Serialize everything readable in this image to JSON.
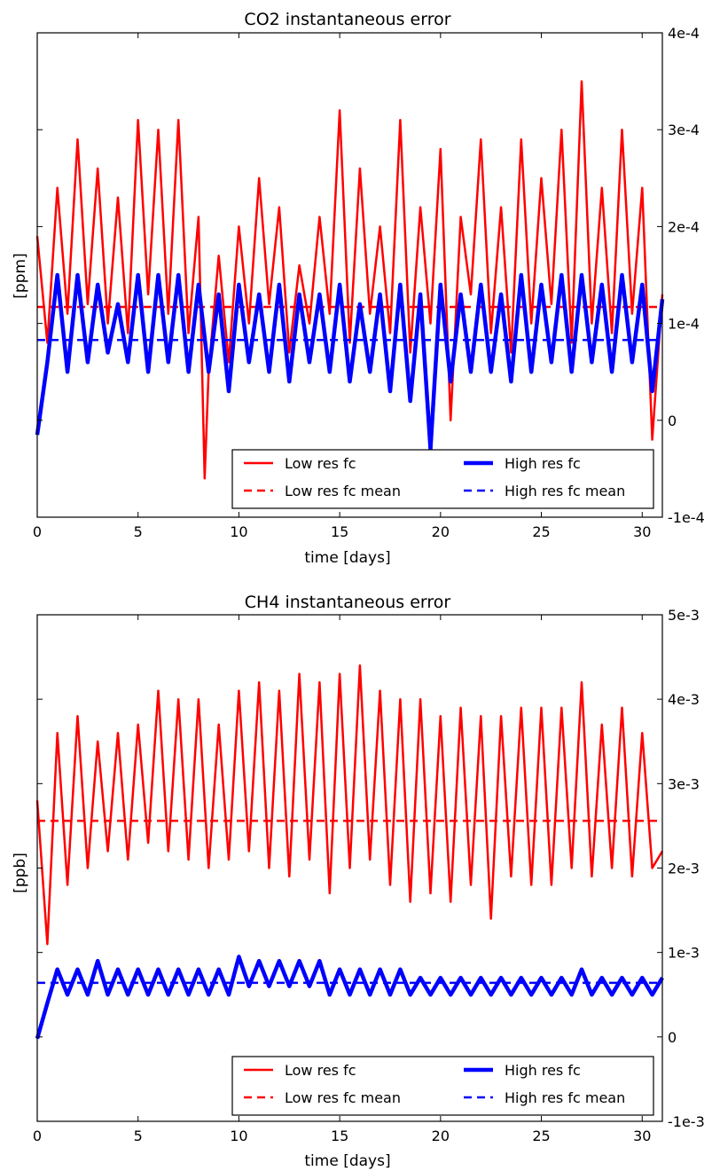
{
  "colors": {
    "low_res": "#ff0000",
    "high_res": "#0000ff",
    "background": "#ffffff",
    "axes": "#000000"
  },
  "chart_data": [
    {
      "type": "line",
      "title": "CO2 instantaneous error",
      "xlabel": "time [days]",
      "ylabel": "[ppm]",
      "xlim": [
        0,
        31
      ],
      "ylim": [
        -0.0001,
        0.0004
      ],
      "xticks": [
        "0",
        "5",
        "10",
        "15",
        "20",
        "25",
        "30"
      ],
      "xtick_values": [
        0,
        5,
        10,
        15,
        20,
        25,
        30
      ],
      "yticks": [
        "-1e-4",
        "0",
        "1e-4",
        "2e-4",
        "3e-4",
        "4e-4"
      ],
      "ytick_values": [
        -0.0001,
        0,
        0.0001,
        0.0002,
        0.0003,
        0.0004
      ],
      "y_axis_side": "right",
      "grid": false,
      "legend_placement": "lower-right",
      "series": [
        {
          "name": "Low res fc",
          "style": "solid",
          "x": [
            0,
            0.5,
            1,
            1.5,
            2,
            2.5,
            3,
            3.5,
            4,
            4.5,
            5,
            5.5,
            6,
            6.5,
            7,
            7.5,
            8,
            8.3,
            8.5,
            9,
            9.5,
            10,
            10.5,
            11,
            11.5,
            12,
            12.5,
            13,
            13.5,
            14,
            14.5,
            15,
            15.5,
            16,
            16.5,
            17,
            17.5,
            18,
            18.5,
            19,
            19.5,
            20,
            20.5,
            21,
            21.5,
            22,
            22.5,
            23,
            23.5,
            24,
            24.5,
            25,
            25.5,
            26,
            26.5,
            27,
            27.5,
            28,
            28.5,
            29,
            29.5,
            30,
            30.5,
            31
          ],
          "values": [
            0.00019,
            8e-05,
            0.00024,
            0.00011,
            0.00029,
            0.00012,
            0.00026,
            0.0001,
            0.00023,
            9e-05,
            0.00031,
            0.00013,
            0.0003,
            0.00011,
            0.00031,
            9e-05,
            0.00021,
            -6e-05,
            5e-05,
            0.00017,
            6e-05,
            0.0002,
            0.0001,
            0.00025,
            0.00012,
            0.00022,
            7e-05,
            0.00016,
            0.0001,
            0.00021,
            0.00011,
            0.00032,
            8e-05,
            0.00026,
            0.00011,
            0.0002,
            9e-05,
            0.00031,
            7e-05,
            0.00022,
            0.0001,
            0.00028,
            0.0,
            0.00021,
            0.00013,
            0.00029,
            9e-05,
            0.00022,
            7e-05,
            0.00029,
            0.0001,
            0.00025,
            0.00012,
            0.0003,
            8e-05,
            0.00035,
            0.0001,
            0.00024,
            9e-05,
            0.0003,
            0.00011,
            0.00024,
            -2e-05,
            0.00013
          ]
        },
        {
          "name": "Low res fc  mean",
          "style": "dashed",
          "x": [
            0,
            31
          ],
          "values": [
            0.000117,
            0.000117
          ]
        },
        {
          "name": "High res fc",
          "style": "solid-thick",
          "x": [
            0,
            0.5,
            1,
            1.5,
            2,
            2.5,
            3,
            3.5,
            4,
            4.5,
            5,
            5.5,
            6,
            6.5,
            7,
            7.5,
            8,
            8.5,
            9,
            9.5,
            10,
            10.5,
            11,
            11.5,
            12,
            12.5,
            13,
            13.5,
            14,
            14.5,
            15,
            15.5,
            16,
            16.5,
            17,
            17.5,
            18,
            18.5,
            19,
            19.5,
            20,
            20.5,
            21,
            21.5,
            22,
            22.5,
            23,
            23.5,
            24,
            24.5,
            25,
            25.5,
            26,
            26.5,
            27,
            27.5,
            28,
            28.5,
            29,
            29.5,
            30,
            30.5,
            31
          ],
          "values": [
            -1.5e-05,
            6e-05,
            0.00015,
            5e-05,
            0.00015,
            6e-05,
            0.00014,
            7e-05,
            0.00012,
            6e-05,
            0.00015,
            5e-05,
            0.00015,
            6e-05,
            0.00015,
            5e-05,
            0.00014,
            5e-05,
            0.00013,
            3e-05,
            0.00014,
            6e-05,
            0.00013,
            5e-05,
            0.00014,
            4e-05,
            0.00013,
            6e-05,
            0.00013,
            5e-05,
            0.00014,
            4e-05,
            0.00012,
            5e-05,
            0.00013,
            3e-05,
            0.00014,
            2e-05,
            0.00013,
            -3e-05,
            0.00014,
            4e-05,
            0.00013,
            5e-05,
            0.00014,
            5e-05,
            0.00013,
            4e-05,
            0.00015,
            5e-05,
            0.00014,
            6e-05,
            0.00015,
            5e-05,
            0.00015,
            6e-05,
            0.00014,
            5e-05,
            0.00015,
            6e-05,
            0.00014,
            3e-05,
            0.000125
          ]
        },
        {
          "name": "High res fc mean",
          "style": "dashed",
          "x": [
            0,
            31
          ],
          "values": [
            8.3e-05,
            8.3e-05
          ]
        }
      ]
    },
    {
      "type": "line",
      "title": "CH4 instantaneous error",
      "xlabel": "time [days]",
      "ylabel": "[ppb]",
      "xlim": [
        0,
        31
      ],
      "ylim": [
        -0.001,
        0.005
      ],
      "xticks": [
        "0",
        "5",
        "10",
        "15",
        "20",
        "25",
        "30"
      ],
      "xtick_values": [
        0,
        5,
        10,
        15,
        20,
        25,
        30
      ],
      "yticks": [
        "-1e-3",
        "0",
        "1e-3",
        "2e-3",
        "3e-3",
        "4e-3",
        "5e-3"
      ],
      "ytick_values": [
        -0.001,
        0,
        0.001,
        0.002,
        0.003,
        0.004,
        0.005
      ],
      "y_axis_side": "right",
      "grid": false,
      "legend_placement": "lower-right",
      "series": [
        {
          "name": "Low res fc",
          "style": "solid",
          "x": [
            0,
            0.5,
            1,
            1.5,
            2,
            2.5,
            3,
            3.5,
            4,
            4.5,
            5,
            5.5,
            6,
            6.5,
            7,
            7.5,
            8,
            8.5,
            9,
            9.5,
            10,
            10.5,
            11,
            11.5,
            12,
            12.5,
            13,
            13.5,
            14,
            14.5,
            15,
            15.5,
            16,
            16.5,
            17,
            17.5,
            18,
            18.5,
            19,
            19.5,
            20,
            20.5,
            21,
            21.5,
            22,
            22.5,
            23,
            23.5,
            24,
            24.5,
            25,
            25.5,
            26,
            26.5,
            27,
            27.5,
            28,
            28.5,
            29,
            29.5,
            30,
            30.5,
            31
          ],
          "values": [
            0.0028,
            0.0011,
            0.0036,
            0.0018,
            0.0038,
            0.002,
            0.0035,
            0.0022,
            0.0036,
            0.0021,
            0.0037,
            0.0023,
            0.0041,
            0.0022,
            0.004,
            0.0021,
            0.004,
            0.002,
            0.0037,
            0.0021,
            0.0041,
            0.0022,
            0.0042,
            0.002,
            0.0041,
            0.0019,
            0.0043,
            0.0021,
            0.0042,
            0.0017,
            0.0043,
            0.002,
            0.0044,
            0.0021,
            0.0041,
            0.0018,
            0.004,
            0.0016,
            0.004,
            0.0017,
            0.0038,
            0.0016,
            0.0039,
            0.0018,
            0.0038,
            0.0014,
            0.0038,
            0.0019,
            0.0039,
            0.0018,
            0.0039,
            0.0018,
            0.0039,
            0.002,
            0.0042,
            0.0019,
            0.0037,
            0.002,
            0.0039,
            0.0019,
            0.0036,
            0.002,
            0.0022
          ]
        },
        {
          "name": "Low res fc  mean",
          "style": "dashed",
          "x": [
            0,
            31
          ],
          "values": [
            0.00256,
            0.00256
          ]
        },
        {
          "name": "High res fc",
          "style": "solid-thick",
          "x": [
            0,
            0.5,
            1,
            1.5,
            2,
            2.5,
            3,
            3.5,
            4,
            4.5,
            5,
            5.5,
            6,
            6.5,
            7,
            7.5,
            8,
            8.5,
            9,
            9.5,
            10,
            10.5,
            11,
            11.5,
            12,
            12.5,
            13,
            13.5,
            14,
            14.5,
            15,
            15.5,
            16,
            16.5,
            17,
            17.5,
            18,
            18.5,
            19,
            19.5,
            20,
            20.5,
            21,
            21.5,
            22,
            22.5,
            23,
            23.5,
            24,
            24.5,
            25,
            25.5,
            26,
            26.5,
            27,
            27.5,
            28,
            28.5,
            29,
            29.5,
            30,
            30.5,
            31
          ],
          "values": [
            -2e-05,
            0.0004,
            0.0008,
            0.0005,
            0.0008,
            0.0005,
            0.0009,
            0.0005,
            0.0008,
            0.0005,
            0.0008,
            0.0005,
            0.0008,
            0.0005,
            0.0008,
            0.0005,
            0.0008,
            0.0005,
            0.0008,
            0.0005,
            0.00095,
            0.0006,
            0.0009,
            0.0006,
            0.0009,
            0.0006,
            0.0009,
            0.0006,
            0.0009,
            0.0005,
            0.0008,
            0.0005,
            0.0008,
            0.0005,
            0.0008,
            0.0005,
            0.0008,
            0.0005,
            0.0007,
            0.0005,
            0.0007,
            0.0005,
            0.0007,
            0.0005,
            0.0007,
            0.0005,
            0.0007,
            0.0005,
            0.0007,
            0.0005,
            0.0007,
            0.0005,
            0.0007,
            0.0005,
            0.0008,
            0.0005,
            0.0007,
            0.0005,
            0.0007,
            0.0005,
            0.0007,
            0.0005,
            0.0007
          ]
        },
        {
          "name": "High res fc mean",
          "style": "dashed",
          "x": [
            0,
            31
          ],
          "values": [
            0.00064,
            0.00064
          ]
        }
      ]
    }
  ]
}
